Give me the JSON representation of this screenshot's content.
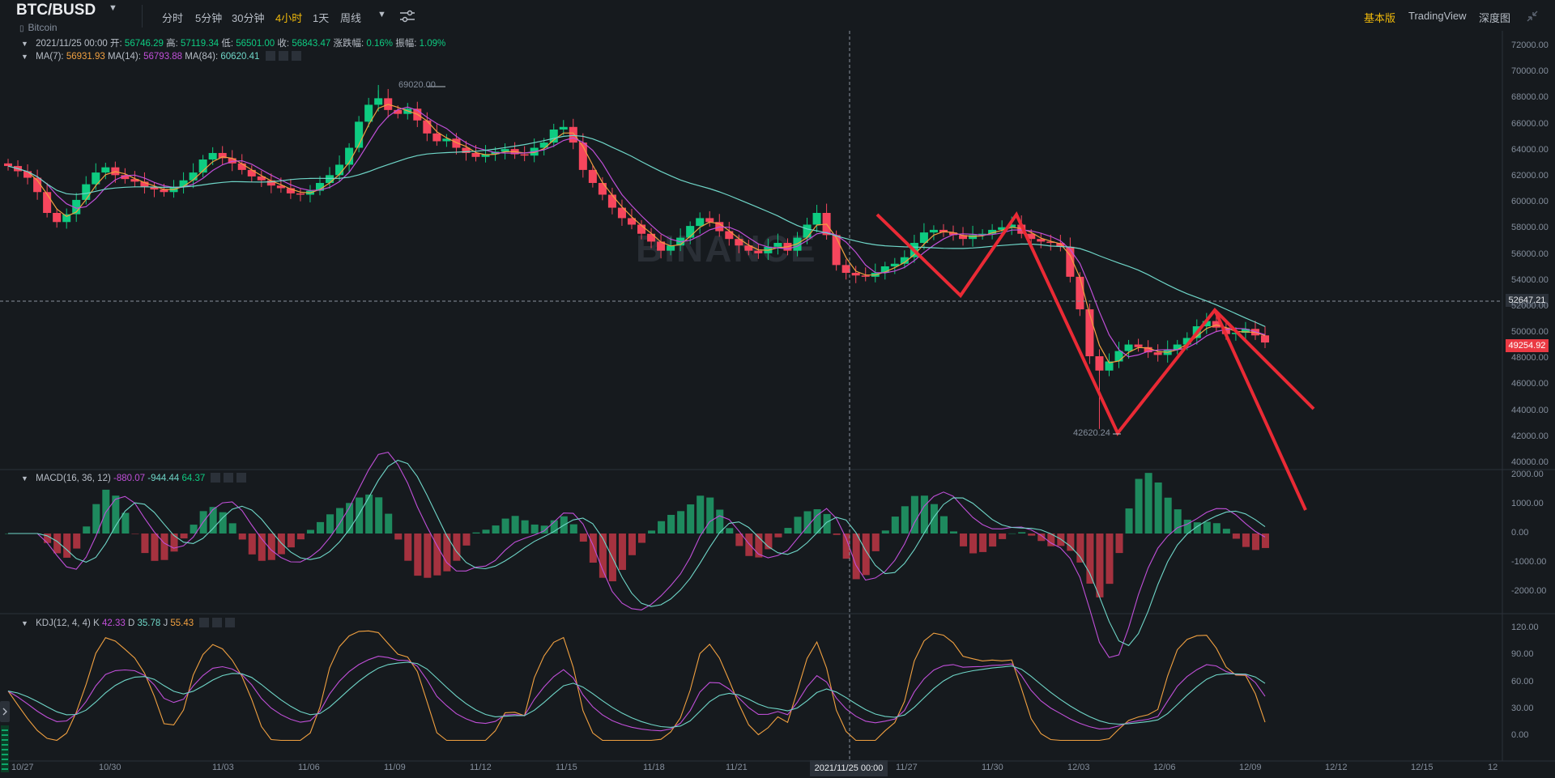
{
  "header": {
    "symbol": "BTC/BUSD",
    "subname": "Bitcoin",
    "timeframes": [
      "分时",
      "5分钟",
      "30分钟",
      "4小时",
      "1天",
      "周线"
    ],
    "active_timeframe": "4小时",
    "views": [
      "基本版",
      "TradingView",
      "深度图"
    ],
    "active_view": "基本版"
  },
  "ohlc_legend": {
    "date": "2021/11/25 00:00",
    "open_label": "开:",
    "open": "56746.29",
    "high_label": "高:",
    "high": "57119.34",
    "low_label": "低:",
    "low": "56501.00",
    "close_label": "收:",
    "close": "56843.47",
    "change_label": "涨跌幅:",
    "change": "0.16%",
    "amp_label": "振幅:",
    "amp": "1.09%"
  },
  "ma_legend": {
    "ma7_label": "MA(7):",
    "ma7": "56931.93",
    "ma14_label": "MA(14):",
    "ma14": "56793.88",
    "ma84_label": "MA(84):",
    "ma84": "60620.41"
  },
  "macd_legend": {
    "label": "MACD(16, 36, 12)",
    "v1": "-880.07",
    "v2": "-944.44",
    "v3": "64.37"
  },
  "kdj_legend": {
    "label": "KDJ(12, 4, 4)",
    "k_label": "K",
    "k": "42.33",
    "d_label": "D",
    "d": "35.78",
    "j_label": "J",
    "j": "55.43"
  },
  "price_axis": [
    "72000.00",
    "70000.00",
    "68000.00",
    "66000.00",
    "64000.00",
    "62000.00",
    "60000.00",
    "58000.00",
    "56000.00",
    "54000.00",
    "52000.00",
    "50000.00",
    "48000.00",
    "46000.00",
    "44000.00",
    "42000.00",
    "40000.00"
  ],
  "macd_axis": [
    "2000.00",
    "1000.00",
    "0.00",
    "-1000.00",
    "-2000.00"
  ],
  "kdj_axis": [
    "120.00",
    "90.00",
    "60.00",
    "30.00",
    "0.00"
  ],
  "time_axis": [
    "10/27",
    "10/30",
    "11/03",
    "11/06",
    "11/09",
    "11/12",
    "11/15",
    "11/18",
    "11/21",
    "11/27",
    "11/30",
    "12/03",
    "12/06",
    "12/09",
    "12/12",
    "12/15",
    "12"
  ],
  "crosshair": {
    "price": "52647.21",
    "time": "2021/11/25 00:00"
  },
  "current_price": "49254.92",
  "annotations": {
    "high": "69020.00",
    "low": "42620.24"
  },
  "watermark": "BINANCE",
  "colors": {
    "up": "#0ecb81",
    "down": "#f6465d",
    "accent": "#f0b90b",
    "ma7": "#f0a040",
    "ma14": "#c04fd8",
    "ma84": "#6fd6c8",
    "drawing": "#ea2a35"
  },
  "chart_data": {
    "type": "candlestick",
    "price_ylim": [
      40000,
      72000
    ],
    "closes": [
      62800,
      62400,
      61900,
      60800,
      59200,
      58500,
      59100,
      60200,
      61400,
      62300,
      62700,
      62100,
      61800,
      61600,
      61200,
      61000,
      60800,
      61200,
      61700,
      62300,
      63300,
      63800,
      63400,
      63000,
      62500,
      62000,
      61700,
      61300,
      61100,
      60700,
      60600,
      60900,
      61500,
      62100,
      62900,
      64200,
      66200,
      67500,
      68000,
      67100,
      66800,
      67200,
      66300,
      65300,
      64700,
      64900,
      64200,
      63800,
      63500,
      63700,
      63900,
      64100,
      63700,
      63600,
      64200,
      64600,
      65600,
      65800,
      64600,
      62500,
      61500,
      60600,
      59600,
      58800,
      58300,
      57600,
      57000,
      56300,
      56700,
      57300,
      58200,
      58800,
      58500,
      57800,
      57200,
      56700,
      56300,
      56100,
      56600,
      56900,
      56300,
      57300,
      58300,
      59200,
      57500,
      55200,
      54600,
      54400,
      54300,
      54600,
      55100,
      55300,
      55800,
      56900,
      57700,
      57900,
      57700,
      57500,
      57200,
      57500,
      57600,
      57900,
      58100,
      58300,
      57600,
      57200,
      57000,
      56900,
      56600,
      54300,
      51800,
      48200,
      47100,
      47800,
      48600,
      49100,
      48900,
      48500,
      48300,
      48700,
      49100,
      49600,
      50500,
      50900,
      50400,
      49900,
      50000,
      50300,
      49800,
      49254
    ]
  }
}
